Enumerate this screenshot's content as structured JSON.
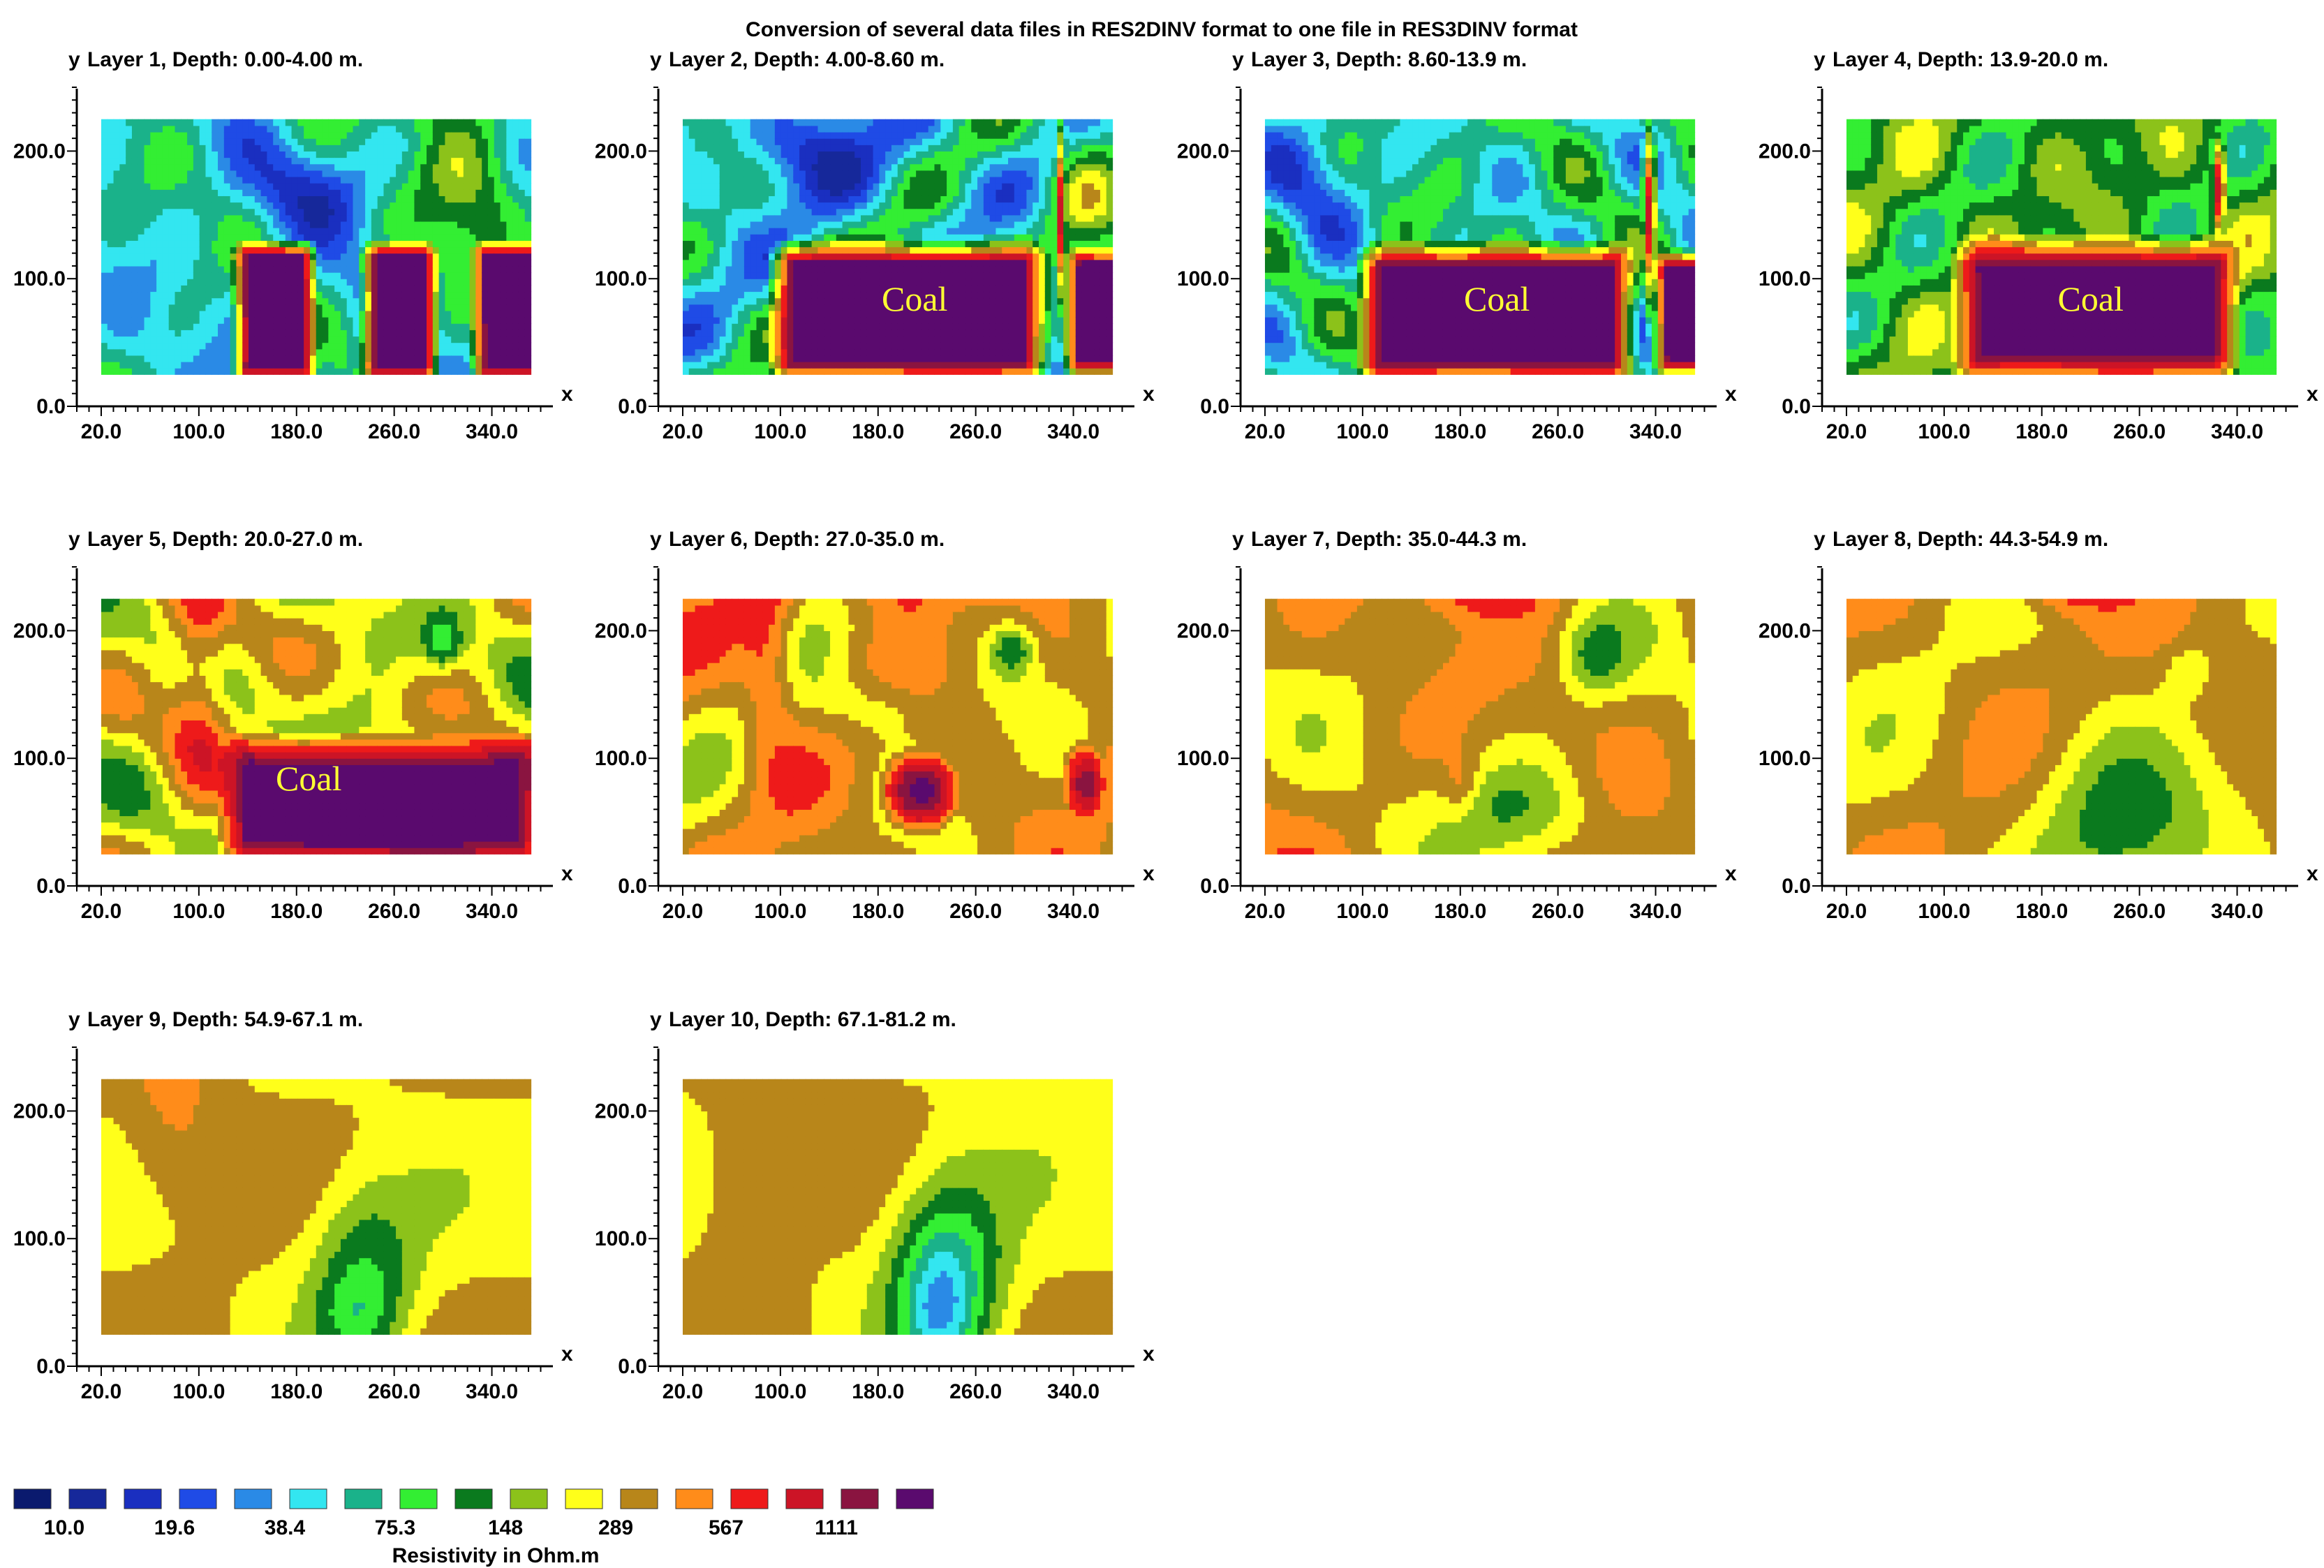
{
  "title": "Conversion of several data files in RES2DINV format to one file in RES3DINV format",
  "y_axis_letter": "y",
  "x_axis_letter": "x",
  "coal_label": "Coal",
  "chart_data": [
    {
      "type": "heatmap",
      "title": "Layer 1, Depth: 0.00-4.00 m.",
      "xticks": [
        "20.0",
        "100.0",
        "180.0",
        "260.0",
        "340.0"
      ],
      "yticks": [
        "0.0",
        "100.0",
        "200.0"
      ],
      "xlim": [
        0,
        390
      ],
      "ylim": [
        0,
        250
      ],
      "annotation": ""
    },
    {
      "type": "heatmap",
      "title": "Layer 2, Depth: 4.00-8.60 m.",
      "xticks": [
        "20.0",
        "100.0",
        "180.0",
        "260.0",
        "340.0"
      ],
      "yticks": [
        "0.0",
        "100.0",
        "200.0"
      ],
      "xlim": [
        0,
        390
      ],
      "ylim": [
        0,
        250
      ],
      "annotation": "Coal"
    },
    {
      "type": "heatmap",
      "title": "Layer 3, Depth: 8.60-13.9 m.",
      "xticks": [
        "20.0",
        "100.0",
        "180.0",
        "260.0",
        "340.0"
      ],
      "yticks": [
        "0.0",
        "100.0",
        "200.0"
      ],
      "xlim": [
        0,
        390
      ],
      "ylim": [
        0,
        250
      ],
      "annotation": "Coal"
    },
    {
      "type": "heatmap",
      "title": "Layer 4, Depth: 13.9-20.0 m.",
      "xticks": [
        "20.0",
        "100.0",
        "180.0",
        "260.0",
        "340.0"
      ],
      "yticks": [
        "0.0",
        "100.0",
        "200.0"
      ],
      "xlim": [
        0,
        390
      ],
      "ylim": [
        0,
        250
      ],
      "annotation": "Coal"
    },
    {
      "type": "heatmap",
      "title": "Layer 5, Depth: 20.0-27.0 m.",
      "xticks": [
        "20.0",
        "100.0",
        "180.0",
        "260.0",
        "340.0"
      ],
      "yticks": [
        "0.0",
        "100.0",
        "200.0"
      ],
      "xlim": [
        0,
        390
      ],
      "ylim": [
        0,
        250
      ],
      "annotation": "Coal"
    },
    {
      "type": "heatmap",
      "title": "Layer 6, Depth: 27.0-35.0 m.",
      "xticks": [
        "20.0",
        "100.0",
        "180.0",
        "260.0",
        "340.0"
      ],
      "yticks": [
        "0.0",
        "100.0",
        "200.0"
      ],
      "xlim": [
        0,
        390
      ],
      "ylim": [
        0,
        250
      ],
      "annotation": ""
    },
    {
      "type": "heatmap",
      "title": "Layer 7, Depth: 35.0-44.3 m.",
      "xticks": [
        "20.0",
        "100.0",
        "180.0",
        "260.0",
        "340.0"
      ],
      "yticks": [
        "0.0",
        "100.0",
        "200.0"
      ],
      "xlim": [
        0,
        390
      ],
      "ylim": [
        0,
        250
      ],
      "annotation": ""
    },
    {
      "type": "heatmap",
      "title": "Layer 8, Depth: 44.3-54.9 m.",
      "xticks": [
        "20.0",
        "100.0",
        "180.0",
        "260.0",
        "340.0"
      ],
      "yticks": [
        "0.0",
        "100.0",
        "200.0"
      ],
      "xlim": [
        0,
        390
      ],
      "ylim": [
        0,
        250
      ],
      "annotation": ""
    },
    {
      "type": "heatmap",
      "title": "Layer 9, Depth: 54.9-67.1 m.",
      "xticks": [
        "20.0",
        "100.0",
        "180.0",
        "260.0",
        "340.0"
      ],
      "yticks": [
        "0.0",
        "100.0",
        "200.0"
      ],
      "xlim": [
        0,
        390
      ],
      "ylim": [
        0,
        250
      ],
      "annotation": ""
    },
    {
      "type": "heatmap",
      "title": "Layer 10, Depth: 67.1-81.2 m.",
      "xticks": [
        "20.0",
        "100.0",
        "180.0",
        "260.0",
        "340.0"
      ],
      "yticks": [
        "0.0",
        "100.0",
        "200.0"
      ],
      "xlim": [
        0,
        390
      ],
      "ylim": [
        0,
        250
      ],
      "annotation": ""
    }
  ],
  "colorbar": {
    "title": "Resistivity in Ohm.m",
    "colors": [
      "#0a1a6e",
      "#16289a",
      "#1a2fc0",
      "#1f4be6",
      "#2a8ae6",
      "#33e6f0",
      "#1ab28a",
      "#33ee33",
      "#0a7a1e",
      "#8cc21a",
      "#ffff1a",
      "#b8861a",
      "#ff8c1a",
      "#ee1a1a",
      "#cc1426",
      "#8a1440",
      "#5a0a6e"
    ],
    "labels": [
      "10.0",
      "19.6",
      "38.4",
      "75.3",
      "148",
      "289",
      "567",
      "1111"
    ]
  }
}
